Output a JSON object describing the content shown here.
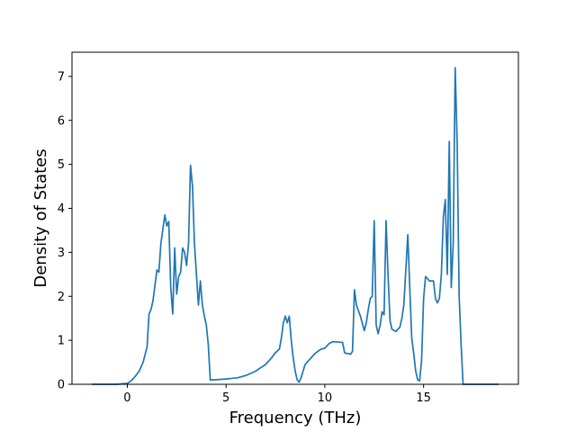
{
  "chart_data": {
    "type": "line",
    "title": "",
    "xlabel": "Frequency (THz)",
    "ylabel": "Density of States",
    "xlim": [
      -2.8,
      19.8
    ],
    "ylim": [
      0,
      7.55
    ],
    "x_ticks": [
      0,
      5,
      10,
      15
    ],
    "y_ticks": [
      0,
      1,
      2,
      3,
      4,
      5,
      6,
      7
    ],
    "grid": false,
    "legend": "none",
    "series": [
      {
        "color": "#1f77b4",
        "x": [
          -1.8,
          -0.5,
          0.0,
          0.2,
          0.4,
          0.6,
          0.8,
          1.0,
          1.1,
          1.2,
          1.3,
          1.5,
          1.6,
          1.7,
          1.9,
          2.0,
          2.1,
          2.2,
          2.3,
          2.4,
          2.5,
          2.6,
          2.7,
          2.8,
          2.9,
          3.0,
          3.1,
          3.2,
          3.3,
          3.4,
          3.5,
          3.6,
          3.7,
          3.8,
          3.9,
          4.0,
          4.1,
          4.2,
          4.3,
          5.0,
          5.6,
          6.0,
          6.5,
          7.0,
          7.3,
          7.5,
          7.7,
          7.8,
          7.9,
          8.0,
          8.1,
          8.2,
          8.3,
          8.4,
          8.5,
          8.6,
          8.7,
          8.8,
          9.0,
          9.5,
          9.8,
          10.0,
          10.2,
          10.4,
          10.7,
          10.9,
          11.0,
          11.1,
          11.2,
          11.3,
          11.4,
          11.5,
          11.6,
          11.8,
          12.0,
          12.1,
          12.2,
          12.3,
          12.4,
          12.5,
          12.6,
          12.7,
          12.8,
          12.9,
          13.0,
          13.1,
          13.2,
          13.3,
          13.4,
          13.6,
          13.8,
          13.9,
          14.0,
          14.1,
          14.2,
          14.3,
          14.4,
          14.5,
          14.6,
          14.7,
          14.8,
          14.9,
          15.0,
          15.1,
          15.2,
          15.3,
          15.5,
          15.6,
          15.7,
          15.8,
          15.9,
          16.0,
          16.1,
          16.2,
          16.3,
          16.4,
          16.5,
          16.6,
          16.7,
          16.8,
          16.9,
          17.0,
          17.1,
          17.2,
          18.8
        ],
        "values": [
          0.0,
          0.0,
          0.02,
          0.08,
          0.18,
          0.3,
          0.5,
          0.85,
          1.6,
          1.7,
          1.9,
          2.6,
          2.55,
          3.2,
          3.85,
          3.6,
          3.7,
          2.2,
          1.6,
          3.1,
          2.05,
          2.45,
          2.55,
          3.1,
          3.0,
          2.7,
          3.2,
          4.98,
          4.5,
          3.2,
          2.5,
          1.8,
          2.35,
          1.8,
          1.55,
          1.35,
          0.9,
          0.1,
          0.1,
          0.12,
          0.15,
          0.2,
          0.3,
          0.45,
          0.6,
          0.72,
          0.8,
          1.05,
          1.4,
          1.55,
          1.4,
          1.55,
          1.0,
          0.6,
          0.3,
          0.1,
          0.05,
          0.15,
          0.45,
          0.7,
          0.8,
          0.82,
          0.92,
          0.97,
          0.96,
          0.95,
          0.72,
          0.7,
          0.7,
          0.68,
          0.75,
          2.15,
          1.8,
          1.55,
          1.22,
          1.4,
          1.7,
          1.95,
          2.0,
          3.72,
          1.35,
          1.15,
          1.35,
          1.65,
          1.58,
          3.72,
          2.5,
          1.45,
          1.25,
          1.2,
          1.3,
          1.5,
          1.8,
          2.6,
          3.4,
          2.2,
          1.05,
          0.7,
          0.3,
          0.1,
          0.08,
          0.55,
          1.95,
          2.45,
          2.4,
          2.35,
          2.35,
          1.95,
          1.85,
          1.95,
          2.5,
          3.8,
          4.2,
          2.5,
          5.52,
          2.2,
          3.2,
          7.2,
          5.5,
          2.0,
          0.9,
          0.0,
          0.0,
          0.0,
          0.0
        ]
      }
    ]
  }
}
